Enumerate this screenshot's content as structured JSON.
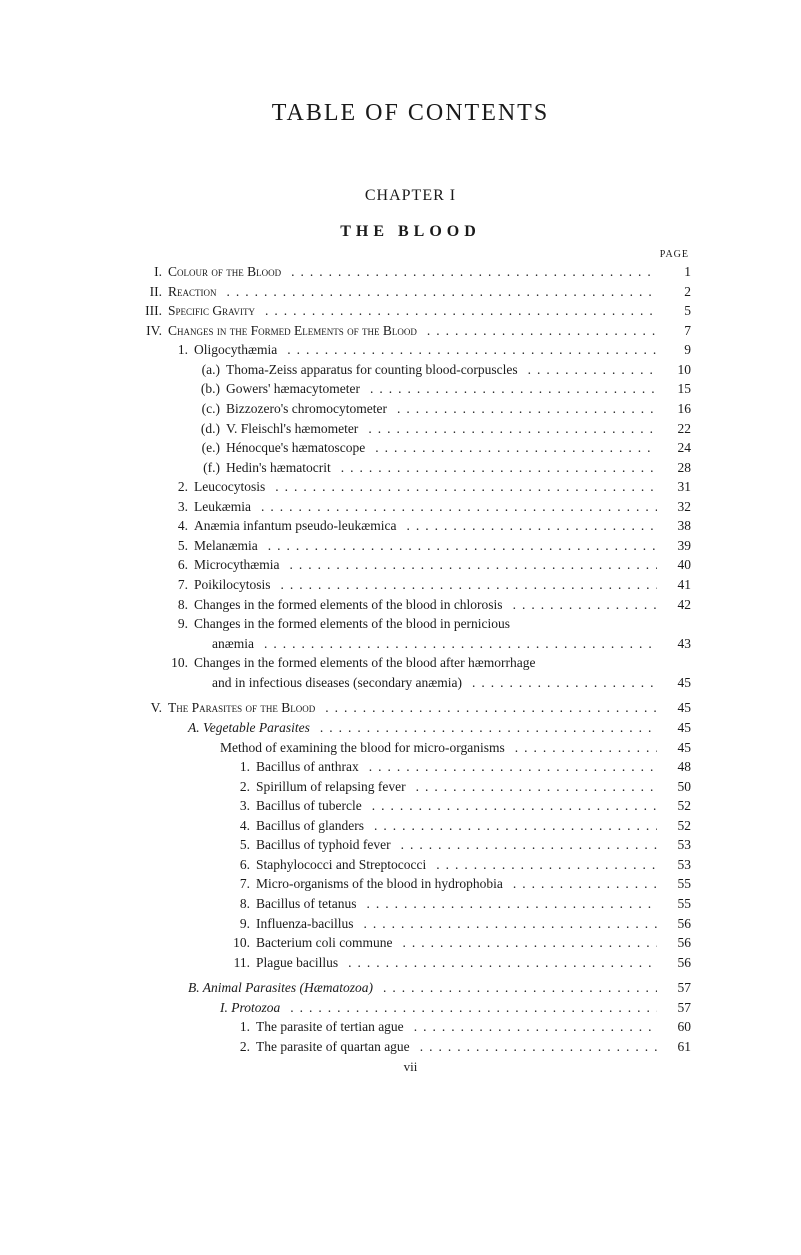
{
  "title": "TABLE OF CONTENTS",
  "chapter": "CHAPTER I",
  "chapterTitle": "THE BLOOD",
  "pageLabel": "PAGE",
  "footerRoman": "vii",
  "entries": [
    {
      "lvl": "roman",
      "n": "I.",
      "label": "Colour of the Blood",
      "cls": "smallcaps",
      "p": "1"
    },
    {
      "lvl": "roman",
      "n": "II.",
      "label": "Reaction",
      "cls": "smallcaps",
      "p": "2"
    },
    {
      "lvl": "roman",
      "n": "III.",
      "label": "Specific Gravity",
      "cls": "smallcaps",
      "p": "5"
    },
    {
      "lvl": "roman",
      "n": "IV.",
      "label": "Changes in the Formed Elements of the Blood",
      "cls": "smallcaps",
      "p": "7"
    },
    {
      "lvl": "num1",
      "n": "1.",
      "label": "Oligocythæmia",
      "p": "9"
    },
    {
      "lvl": "num2",
      "n": "(a.)",
      "label": "Thoma-Zeiss apparatus for counting blood-corpuscles",
      "p": "10"
    },
    {
      "lvl": "num2",
      "n": "(b.)",
      "label": "Gowers' hæmacytometer",
      "p": "15"
    },
    {
      "lvl": "num2",
      "n": "(c.)",
      "label": "Bizzozero's chromocytometer",
      "p": "16"
    },
    {
      "lvl": "num2",
      "n": "(d.)",
      "label": "V. Fleischl's hæmometer",
      "p": "22"
    },
    {
      "lvl": "num2",
      "n": "(e.)",
      "label": "Hénocque's hæmatoscope",
      "p": "24"
    },
    {
      "lvl": "num2",
      "n": "(f.)",
      "label": "Hedin's hæmatocrit",
      "p": "28"
    },
    {
      "lvl": "num1",
      "n": "2.",
      "label": "Leucocytosis",
      "p": "31"
    },
    {
      "lvl": "num1",
      "n": "3.",
      "label": "Leukæmia",
      "p": "32"
    },
    {
      "lvl": "num1",
      "n": "4.",
      "label": "Anæmia infantum pseudo-leukæmica",
      "p": "38"
    },
    {
      "lvl": "num1",
      "n": "5.",
      "label": "Melanæmia",
      "p": "39"
    },
    {
      "lvl": "num1",
      "n": "6.",
      "label": "Microcythæmia",
      "p": "40"
    },
    {
      "lvl": "num1",
      "n": "7.",
      "label": "Poikilocytosis",
      "p": "41"
    },
    {
      "lvl": "num1",
      "n": "8.",
      "label": "Changes in the formed elements of the blood in chlorosis",
      "p": "42"
    },
    {
      "lvl": "num1",
      "n": "9.",
      "label": "Changes in the formed elements of the blood in pernicious",
      "nopage": true
    },
    {
      "lvl": "wrap",
      "label": "anæmia",
      "p": "43"
    },
    {
      "lvl": "num1",
      "n": "10.",
      "label": "Changes in the formed elements of the blood after hæmorrhage",
      "nopage": true
    },
    {
      "lvl": "wrap",
      "label": "and in infectious diseases (secondary anæmia)",
      "p": "45"
    },
    {
      "lvl": "roman",
      "n": "V.",
      "label": "The Parasites of the Blood",
      "cls": "smallcaps",
      "p": "45",
      "gapBefore": true
    },
    {
      "lvl": "indent-a",
      "label": "A. Vegetable Parasites",
      "cls": "italic",
      "p": "45"
    },
    {
      "lvl": "indent-b",
      "label": "Method of examining the blood for micro-organisms",
      "p": "45"
    },
    {
      "lvl": "num3",
      "n": "1.",
      "label": "Bacillus of anthrax",
      "p": "48"
    },
    {
      "lvl": "num3",
      "n": "2.",
      "label": "Spirillum of relapsing fever",
      "p": "50"
    },
    {
      "lvl": "num3",
      "n": "3.",
      "label": "Bacillus of tubercle",
      "p": "52"
    },
    {
      "lvl": "num3",
      "n": "4.",
      "label": "Bacillus of glanders",
      "p": "52"
    },
    {
      "lvl": "num3",
      "n": "5.",
      "label": "Bacillus of typhoid fever",
      "p": "53"
    },
    {
      "lvl": "num3",
      "n": "6.",
      "label": "Staphylococci and Streptococci",
      "p": "53"
    },
    {
      "lvl": "num3",
      "n": "7.",
      "label": "Micro-organisms of the blood in hydrophobia",
      "p": "55"
    },
    {
      "lvl": "num3",
      "n": "8.",
      "label": "Bacillus of tetanus",
      "p": "55"
    },
    {
      "lvl": "num3",
      "n": "9.",
      "label": "Influenza-bacillus",
      "p": "56"
    },
    {
      "lvl": "num3",
      "n": "10.",
      "label": "Bacterium coli commune",
      "p": "56"
    },
    {
      "lvl": "num3",
      "n": "11.",
      "label": "Plague bacillus",
      "p": "56"
    },
    {
      "lvl": "indent-a",
      "label": "B. Animal Parasites (Hæmatozoa)",
      "cls": "italic",
      "p": "57",
      "gapBefore": true
    },
    {
      "lvl": "indent-b",
      "label": "I. Protozoa",
      "cls": "italic",
      "p": "57"
    },
    {
      "lvl": "num3",
      "n": "1.",
      "label": "The parasite of tertian ague",
      "p": "60"
    },
    {
      "lvl": "num3",
      "n": "2.",
      "label": "The parasite of quartan ague",
      "p": "61"
    }
  ]
}
